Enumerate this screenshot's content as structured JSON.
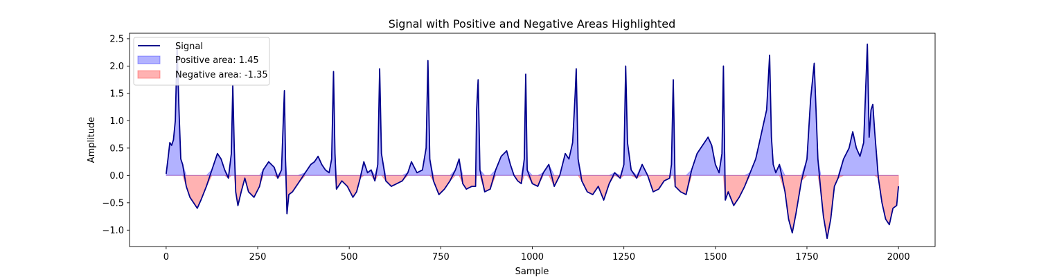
{
  "chart_data": {
    "type": "area",
    "title": "Signal with Positive and Negative Areas Highlighted",
    "xlabel": "Sample",
    "ylabel": "Amplitude",
    "xlim": [
      -100,
      2100
    ],
    "ylim": [
      -1.3,
      2.6
    ],
    "xticks": [
      0,
      250,
      500,
      750,
      1000,
      1250,
      1500,
      1750,
      2000
    ],
    "yticks": [
      -1.0,
      -0.5,
      0.0,
      0.5,
      1.0,
      1.5,
      2.0,
      2.5
    ],
    "xtick_labels": [
      "0",
      "250",
      "500",
      "750",
      "1000",
      "1250",
      "1500",
      "1750",
      "2000"
    ],
    "ytick_labels": [
      "−1.0",
      "−0.5",
      "0.0",
      "0.5",
      "1.0",
      "1.5",
      "2.0",
      "2.5"
    ],
    "grid": false,
    "legend_position": "top-left",
    "colors": {
      "signal": "#00008b",
      "positive_fill": "#0000ff",
      "negative_fill": "#ff0000",
      "fill_alpha": 0.3
    },
    "series": [
      {
        "name": "Signal",
        "kind": "line",
        "x": [
          0,
          5,
          10,
          15,
          20,
          25,
          30,
          35,
          40,
          45,
          55,
          65,
          75,
          85,
          95,
          110,
          125,
          140,
          150,
          160,
          170,
          178,
          182,
          186,
          190,
          196,
          205,
          215,
          225,
          240,
          255,
          265,
          280,
          295,
          305,
          315,
          320,
          323,
          326,
          330,
          335,
          345,
          360,
          380,
          395,
          405,
          415,
          425,
          435,
          445,
          452,
          457,
          461,
          465,
          480,
          495,
          510,
          520,
          530,
          540,
          550,
          560,
          570,
          578,
          583,
          588,
          600,
          615,
          630,
          645,
          660,
          670,
          685,
          700,
          710,
          715,
          720,
          730,
          745,
          760,
          775,
          790,
          800,
          810,
          820,
          835,
          845,
          848,
          852,
          857,
          870,
          885,
          900,
          915,
          930,
          940,
          950,
          960,
          970,
          978,
          982,
          986,
          1000,
          1015,
          1030,
          1045,
          1060,
          1075,
          1090,
          1100,
          1110,
          1117,
          1120,
          1125,
          1135,
          1150,
          1165,
          1180,
          1195,
          1210,
          1225,
          1240,
          1250,
          1255,
          1260,
          1270,
          1285,
          1300,
          1315,
          1330,
          1345,
          1360,
          1375,
          1380,
          1385,
          1390,
          1405,
          1420,
          1435,
          1450,
          1460,
          1470,
          1480,
          1490,
          1500,
          1510,
          1518,
          1522,
          1527,
          1535,
          1550,
          1565,
          1580,
          1595,
          1610,
          1620,
          1630,
          1640,
          1648,
          1653,
          1658,
          1665,
          1675,
          1690,
          1700,
          1710,
          1720,
          1735,
          1750,
          1760,
          1770,
          1780,
          1788,
          1795,
          1805,
          1815,
          1825,
          1835,
          1850,
          1865,
          1875,
          1885,
          1895,
          1905,
          1915,
          1920,
          1925,
          1930,
          1935,
          1945,
          1955,
          1965,
          1975,
          1985,
          1995,
          2000
        ],
        "y": [
          0.03,
          0.3,
          0.6,
          0.55,
          0.65,
          1.0,
          2.35,
          1.2,
          0.3,
          0.2,
          -0.2,
          -0.4,
          -0.5,
          -0.6,
          -0.45,
          -0.2,
          0.1,
          0.4,
          0.3,
          0.1,
          -0.05,
          0.4,
          1.65,
          0.5,
          -0.3,
          -0.55,
          -0.3,
          -0.05,
          -0.3,
          -0.4,
          -0.2,
          0.1,
          0.25,
          0.15,
          -0.05,
          0.1,
          1.0,
          1.55,
          0.3,
          -0.7,
          -0.35,
          -0.3,
          -0.15,
          0.05,
          0.2,
          0.25,
          0.35,
          0.2,
          0.1,
          0.05,
          0.3,
          1.9,
          0.4,
          -0.25,
          -0.1,
          -0.2,
          -0.4,
          -0.3,
          -0.05,
          0.25,
          0.05,
          0.1,
          -0.1,
          0.2,
          1.95,
          0.4,
          -0.1,
          -0.2,
          -0.15,
          -0.1,
          0.05,
          0.25,
          0.05,
          0.1,
          0.5,
          2.1,
          0.3,
          -0.1,
          -0.35,
          -0.25,
          -0.1,
          0.1,
          0.3,
          -0.15,
          -0.25,
          -0.2,
          -0.2,
          1.2,
          1.75,
          0.1,
          -0.3,
          -0.25,
          0.1,
          0.35,
          0.45,
          0.2,
          0.0,
          -0.1,
          -0.15,
          0.3,
          1.85,
          0.1,
          -0.15,
          -0.2,
          0.05,
          0.2,
          -0.2,
          0.0,
          0.4,
          0.3,
          0.6,
          1.5,
          1.95,
          0.3,
          -0.1,
          -0.3,
          -0.35,
          -0.2,
          -0.45,
          -0.15,
          0.05,
          -0.05,
          0.2,
          2.0,
          0.6,
          0.1,
          -0.05,
          0.2,
          0.0,
          -0.3,
          -0.25,
          -0.1,
          -0.05,
          0.2,
          1.75,
          -0.2,
          -0.3,
          -0.35,
          0.1,
          0.4,
          0.5,
          0.6,
          0.7,
          0.55,
          0.2,
          0.05,
          0.4,
          2.0,
          -0.45,
          -0.3,
          -0.55,
          -0.4,
          -0.2,
          0.05,
          0.3,
          0.6,
          0.9,
          1.2,
          2.2,
          0.7,
          0.2,
          0.05,
          0.2,
          -0.3,
          -0.8,
          -1.05,
          -0.7,
          -0.1,
          0.3,
          1.4,
          2.05,
          0.3,
          -0.3,
          -0.75,
          -1.15,
          -0.8,
          -0.2,
          -0.05,
          0.3,
          0.5,
          0.8,
          0.5,
          0.35,
          0.6,
          2.4,
          0.7,
          1.2,
          1.3,
          0.8,
          -0.05,
          -0.5,
          -0.8,
          -0.9,
          -0.6,
          -0.55,
          -0.2
        ]
      },
      {
        "name": "Positive area: 1.45",
        "kind": "fill_positive",
        "area": 1.45
      },
      {
        "name": "Negative area: -1.35",
        "kind": "fill_negative",
        "area": -1.35
      }
    ]
  }
}
